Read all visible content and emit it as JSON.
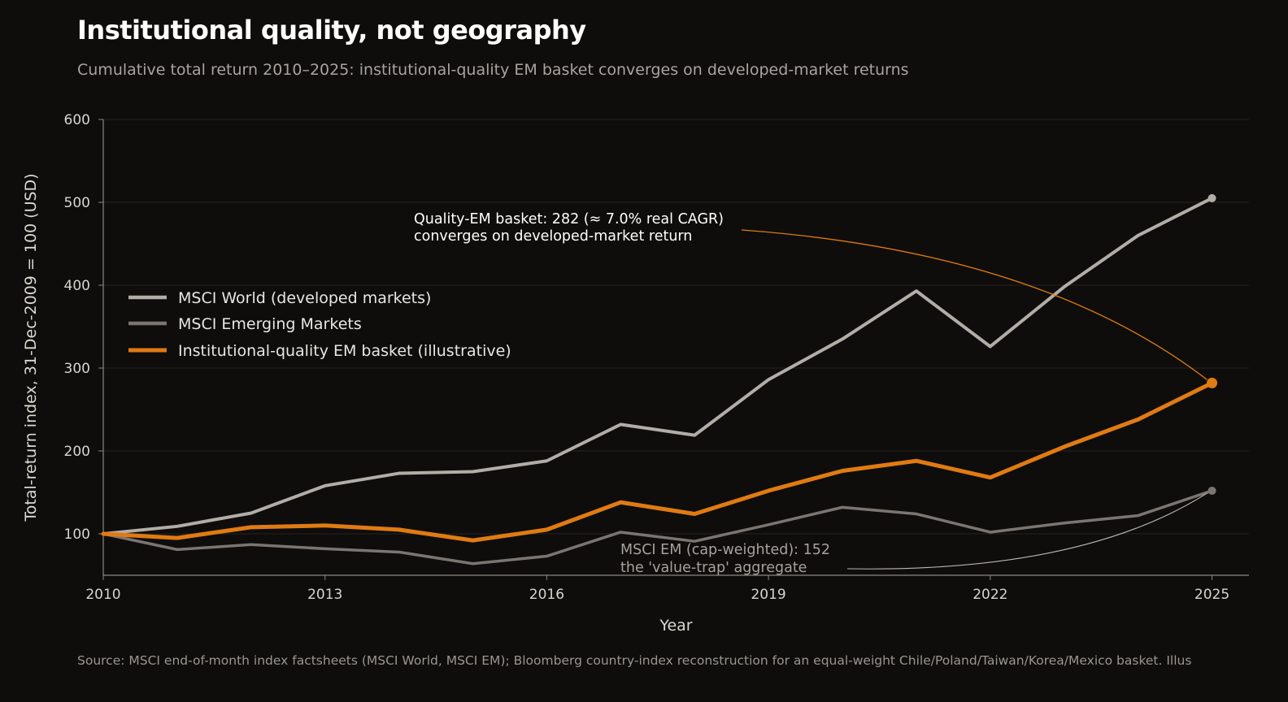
{
  "title": "Institutional quality, not geography",
  "subtitle": "Cumulative total return 2010–2025: institutional-quality EM basket converges on developed-market returns",
  "source": "Source: MSCI end-of-month index factsheets (MSCI World, MSCI EM); Bloomberg country-index reconstruction for an equal-weight Chile/Poland/Taiwan/Korea/Mexico basket. Illus",
  "colors": {
    "background": "#0e0d0b",
    "world": "#b1ada7",
    "em": "#7b7571",
    "quality": "#e07b12",
    "grid": "#262420",
    "axis": "#8a8680"
  },
  "chart_data": {
    "type": "line",
    "xlabel": "Year",
    "ylabel": "Total-return index, 31-Dec-2009 = 100 (USD)",
    "xlim": [
      2010,
      2025.5
    ],
    "ylim": [
      50,
      600
    ],
    "xticks": [
      2010,
      2013,
      2016,
      2019,
      2022,
      2025
    ],
    "yticks": [
      100,
      200,
      300,
      400,
      500,
      600
    ],
    "grid": true,
    "legend_position": "upper-left",
    "x": [
      2010,
      2011,
      2012,
      2013,
      2014,
      2015,
      2016,
      2017,
      2018,
      2019,
      2020,
      2021,
      2022,
      2023,
      2024,
      2025
    ],
    "series": [
      {
        "name": "MSCI World (developed markets)",
        "color_key": "world",
        "values": [
          100,
          109,
          125,
          158,
          173,
          175,
          188,
          232,
          219,
          286,
          335,
          393,
          326,
          398,
          460,
          505
        ]
      },
      {
        "name": "MSCI Emerging Markets",
        "color_key": "em",
        "values": [
          100,
          81,
          87,
          82,
          78,
          64,
          73,
          102,
          91,
          111,
          132,
          124,
          102,
          113,
          122,
          152
        ]
      },
      {
        "name": "Institutional-quality EM basket (illustrative)",
        "color_key": "quality",
        "values": [
          100,
          95,
          108,
          110,
          105,
          92,
          105,
          138,
          124,
          152,
          176,
          188,
          168,
          205,
          238,
          282
        ]
      }
    ],
    "annotations": [
      {
        "lines": [
          "Quality-EM basket: 282 (≈ 7.0% real CAGR)",
          "converges on developed-market return"
        ],
        "target_series": 2
      },
      {
        "lines": [
          "MSCI EM (cap-weighted): 152",
          "the 'value-trap' aggregate"
        ],
        "target_series": 1
      }
    ]
  }
}
